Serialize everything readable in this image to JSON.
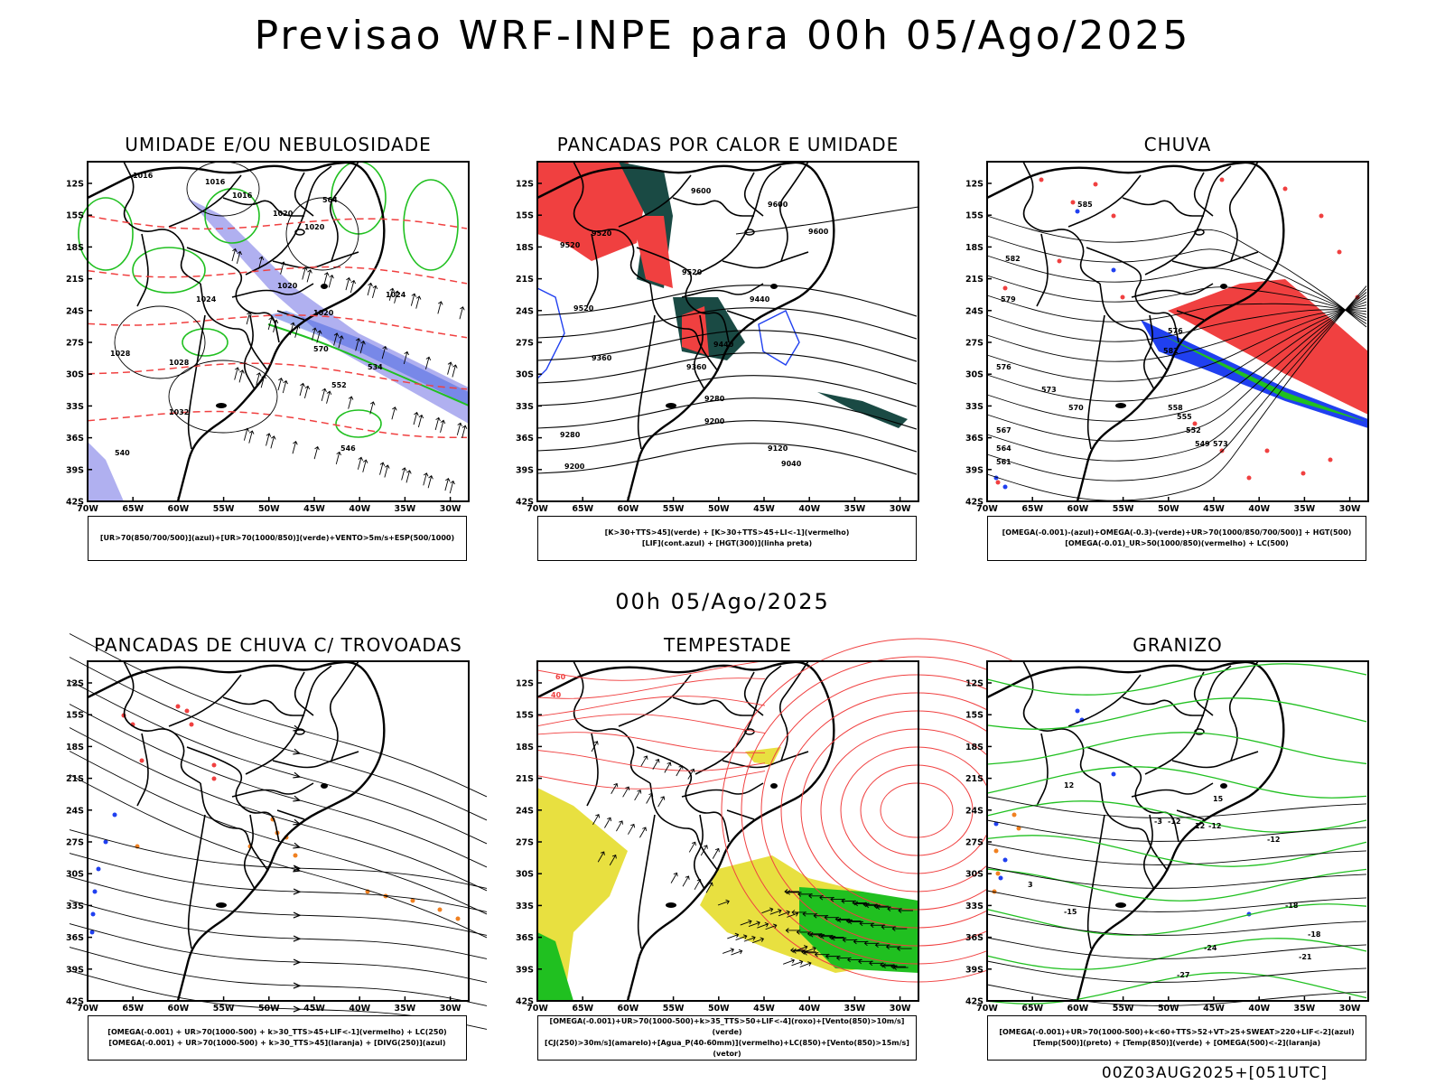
{
  "main_title": "Previsao WRF-INPE  para 00h 05/Ago/2025",
  "mid_title": "00h 05/Ago/2025",
  "footer": "00Z03AUG2025+[051UTC]",
  "lat_ticks": [
    "12S",
    "15S",
    "18S",
    "21S",
    "24S",
    "27S",
    "30S",
    "33S",
    "36S",
    "39S",
    "42S"
  ],
  "lon_ticks": [
    "70W",
    "65W",
    "60W",
    "55W",
    "50W",
    "45W",
    "40W",
    "35W",
    "30W"
  ],
  "colors": {
    "red": "#f04040",
    "green": "#20c020",
    "blue": "#2040f0",
    "lavender": "#b0b0f0",
    "darkteal": "#1a4a44",
    "orange": "#f08020",
    "yellow": "#e8e040"
  },
  "panels": [
    {
      "title": "UMIDADE E/OU NEBULOSIDADE",
      "legend": [
        "[UR>70(850/700/500)](azul)+[UR>70(1000/850)](verde)+VENTO>5m/s+ESP(500/1000)"
      ],
      "labels": [
        "1016",
        "1016",
        "1016",
        "1020",
        "1020",
        "1020",
        "1020",
        "1024",
        "1024",
        "1028",
        "1028",
        "1032",
        "564",
        "570",
        "552",
        "540",
        "546",
        "534"
      ]
    },
    {
      "title": "PANCADAS POR CALOR E UMIDADE",
      "legend": [
        "[K>30+TTS>45](verde) + [K>30+TTS>45+LI<-1](vermelho)",
        "[LIF](cont.azul) + [HGT(300)](linha preta)"
      ],
      "labels": [
        "9600",
        "9600",
        "9600",
        "9520",
        "9520",
        "9520",
        "9520",
        "9440",
        "9440",
        "9360",
        "9360",
        "9280",
        "9280",
        "9200",
        "9200",
        "9120",
        "9040"
      ]
    },
    {
      "title": "CHUVA",
      "legend": [
        "[OMEGA(-0.001)-(azul)+OMEGA(-0.3)-(verde)+UR>70(1000/850/700/500)] + HGT(500)",
        "[OMEGA(-0.01)_UR>50(1000/850)(vermelho) + LC(500)"
      ],
      "labels": [
        "585",
        "582",
        "579",
        "576",
        "573",
        "570",
        "567",
        "564",
        "561",
        "558",
        "555",
        "552",
        "549",
        "573",
        "576",
        "582"
      ]
    },
    {
      "title": "PANCADAS DE CHUVA C/ TROVOADAS",
      "legend": [
        "[OMEGA(-0.001) + UR>70(1000-500) + k>30_TTS>45+LIF<-1](vermelho) + LC(250)",
        "[OMEGA(-0.001) + UR>70(1000-500) + k>30_TTS>45](laranja) + [DIVG(250)](azul)"
      ],
      "labels": []
    },
    {
      "title": "TEMPESTADE",
      "legend": [
        "[OMEGA(-0.001)+UR>70(1000-500)+k>35_TTS>50+LIF<-4](roxo)+[Vento(850)>10m/s](verde)",
        "[CJ(250)>30m/s](amarelo)+[Agua_P(40-60mm)](vermelho)+LC(850)+[Vento(850)>15m/s](vetor)"
      ],
      "labels": [
        "60",
        "40"
      ]
    },
    {
      "title": "GRANIZO",
      "legend": [
        "[OMEGA(-0.001)+UR>70(1000-500)+k<60+TTS>52+VT>25+SWEAT>220+LIF<-2](azul)",
        "[Temp(500)](preto) + [Temp(850)](verde) + [OMEGA(500)<-2](laranja)"
      ],
      "labels": [
        "-3",
        "-12",
        "-12",
        "-12",
        "-15",
        "-18",
        "-18",
        "-21",
        "-24",
        "-27",
        "3",
        "12",
        "15",
        "12"
      ]
    }
  ]
}
